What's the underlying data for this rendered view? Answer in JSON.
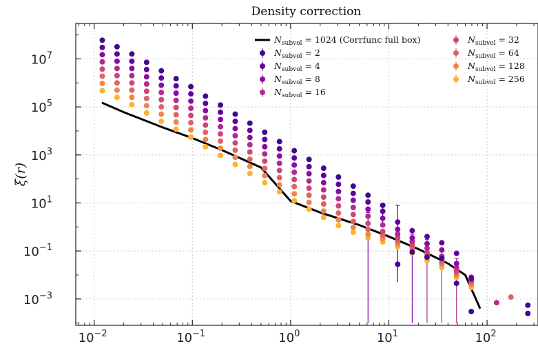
{
  "chart_data": {
    "type": "scatter",
    "title": "Density correction",
    "ylabel": "ξ(r)",
    "xlabel": "",
    "xscale": "log",
    "yscale": "log",
    "xlim": [
      0.0065,
      330
    ],
    "ylim": [
      8e-05,
      300000000
    ],
    "x_ticks": [
      {
        "value": 0.01,
        "base": "10",
        "exp": "−2"
      },
      {
        "value": 0.1,
        "base": "10",
        "exp": "−1"
      },
      {
        "value": 1,
        "base": "10",
        "exp": "0"
      },
      {
        "value": 10,
        "base": "10",
        "exp": "1"
      },
      {
        "value": 100,
        "base": "10",
        "exp": "2"
      }
    ],
    "y_ticks": [
      {
        "value": 0.001,
        "base": "10",
        "exp": "−3"
      },
      {
        "value": 0.1,
        "base": "10",
        "exp": "−1"
      },
      {
        "value": 10,
        "base": "10",
        "exp": "1"
      },
      {
        "value": 1000,
        "base": "10",
        "exp": "3"
      },
      {
        "value": 100000,
        "base": "10",
        "exp": "5"
      },
      {
        "value": 10000000,
        "base": "10",
        "exp": "7"
      }
    ],
    "grid": true,
    "legend_placement": "top-right",
    "x": [
      0.0121,
      0.0171,
      0.0242,
      0.0342,
      0.0483,
      0.0683,
      0.0965,
      0.136,
      0.193,
      0.273,
      0.385,
      0.545,
      0.77,
      1.09,
      1.54,
      2.17,
      3.07,
      4.34,
      6.14,
      8.67,
      12.3,
      17.3,
      24.5,
      34.6,
      48.9,
      69.1
    ],
    "reference_line": {
      "name": "N_subvol = 1024 (Corrfunc full box)",
      "legend_main": "N",
      "legend_sub": "subvol",
      "legend_rest": " = 1024 (Corrfunc full box)",
      "color": "#000000",
      "points": [
        [
          0.012,
          150000
        ],
        [
          0.02,
          60000
        ],
        [
          0.05,
          14000
        ],
        [
          0.1,
          5000
        ],
        [
          0.2,
          1600
        ],
        [
          0.5,
          300
        ],
        [
          1.0,
          12
        ],
        [
          2.0,
          4
        ],
        [
          5.0,
          1.2
        ],
        [
          10.0,
          0.4
        ],
        [
          20.0,
          0.12
        ],
        [
          40.0,
          0.03
        ],
        [
          60.0,
          0.01
        ],
        [
          85.0,
          0.0004
        ]
      ]
    },
    "series": [
      {
        "name": "N_subvol = 2",
        "legend_main": "N",
        "legend_sub": "subvol",
        "legend_rest": " = 2",
        "color": "#3f0a8f",
        "values": [
          60000000,
          32000000,
          16000000,
          7200000,
          3200000,
          1500000,
          700000,
          280000,
          120000,
          50000,
          21000,
          8800,
          3600,
          1500,
          650,
          280,
          120,
          50,
          21,
          8,
          0.028,
          0.09,
          0.055,
          0.05,
          0.0045,
          0.0003
        ],
        "errors": [
          [
            19,
            1.0,
            9.0
          ],
          [
            20,
            0.005,
            0.6
          ]
        ]
      },
      {
        "name": "N_subvol = 4",
        "legend_main": "N",
        "legend_sub": "subvol",
        "legend_rest": " = 4",
        "color": "#5f049b",
        "values": [
          30000000,
          16000000,
          8000000,
          3600000,
          1600000,
          750000,
          350000,
          140000,
          60000,
          25000,
          10500,
          4400,
          1800,
          750,
          325,
          140,
          60,
          25,
          11,
          4.5,
          1.6,
          0.7,
          0.4,
          0.22,
          0.08,
          0.007
        ],
        "errors": [
          [
            20,
            0.3,
            8.0
          ]
        ]
      },
      {
        "name": "N_subvol = 8",
        "legend_main": "N",
        "legend_sub": "subvol",
        "legend_rest": " = 8",
        "color": "#8b0aa5",
        "values": [
          15000000,
          8000000,
          4000000,
          1800000,
          800000,
          375000,
          175000,
          70000,
          30000,
          12500,
          5300,
          2200,
          900,
          380,
          165,
          70,
          30,
          13,
          5.5,
          2.3,
          0.8,
          0.35,
          0.2,
          0.11,
          0.03,
          0.008
        ],
        "errors": [
          [
            18,
            0.0001,
            4.0
          ],
          [
            21,
            0.0001,
            0.5
          ]
        ]
      },
      {
        "name": "N_subvol = 16",
        "legend_main": "N",
        "legend_sub": "subvol",
        "legend_rest": " = 16",
        "color": "#b12a90",
        "values": [
          7500000,
          4000000,
          2000000,
          900000,
          400000,
          188000,
          88000,
          35000,
          15000,
          6300,
          2650,
          1100,
          450,
          190,
          82,
          35,
          15,
          6.5,
          2.8,
          1.2,
          0.5,
          0.25,
          0.13,
          0.06,
          0.02,
          0.008
        ],
        "errors": [
          [
            22,
            0.0001,
            0.3
          ],
          [
            23,
            0.0001,
            0.12
          ],
          [
            24,
            0.0001,
            0.05
          ]
        ]
      },
      {
        "name": "N_subvol = 32",
        "legend_main": "N",
        "legend_sub": "subvol",
        "legend_rest": " = 32",
        "color": "#cc4778",
        "values": [
          3750000,
          2000000,
          1000000,
          450000,
          200000,
          94000,
          44000,
          17500,
          7500,
          3150,
          1330,
          550,
          225,
          95,
          41,
          17.5,
          7.5,
          3.3,
          1.4,
          0.65,
          0.35,
          0.18,
          0.09,
          0.045,
          0.015,
          0.006
        ]
      },
      {
        "name": "N_subvol = 64",
        "legend_main": "N",
        "legend_sub": "subvol",
        "legend_rest": " = 64",
        "color": "#e16462",
        "values": [
          1900000,
          1000000,
          500000,
          225000,
          100000,
          47000,
          22000,
          8750,
          3750,
          1580,
          665,
          275,
          113,
          48,
          21,
          9,
          3.8,
          1.7,
          0.8,
          0.45,
          0.26,
          0.14,
          0.07,
          0.035,
          0.012,
          0.005
        ]
      },
      {
        "name": "N_subvol = 128",
        "legend_main": "N",
        "legend_sub": "subvol",
        "legend_rest": " = 128",
        "color": "#f1844b",
        "values": [
          950000,
          500000,
          250000,
          113000,
          50000,
          23500,
          11000,
          4400,
          1900,
          790,
          333,
          138,
          57,
          24,
          10.5,
          4.6,
          2.0,
          0.95,
          0.5,
          0.33,
          0.2,
          0.11,
          0.055,
          0.028,
          0.01,
          0.004
        ]
      },
      {
        "name": "N_subvol = 256",
        "legend_main": "N",
        "legend_sub": "subvol",
        "legend_rest": " = 256",
        "color": "#fbb32f",
        "values": [
          475000,
          250000,
          125000,
          56000,
          25000,
          11800,
          5500,
          2200,
          950,
          400,
          168,
          70,
          29,
          12.5,
          5.5,
          2.5,
          1.15,
          0.6,
          0.35,
          0.24,
          0.15,
          0.08,
          0.04,
          0.02,
          0.008,
          0.003
        ]
      }
    ],
    "extra_points": [
      {
        "series": 0,
        "x": 260,
        "y": 0.00025
      },
      {
        "series": 0,
        "x": 260,
        "y": 0.00055
      },
      {
        "series": 3,
        "x": 125,
        "y": 0.0007
      },
      {
        "series": 5,
        "x": 175,
        "y": 0.0012
      }
    ]
  }
}
